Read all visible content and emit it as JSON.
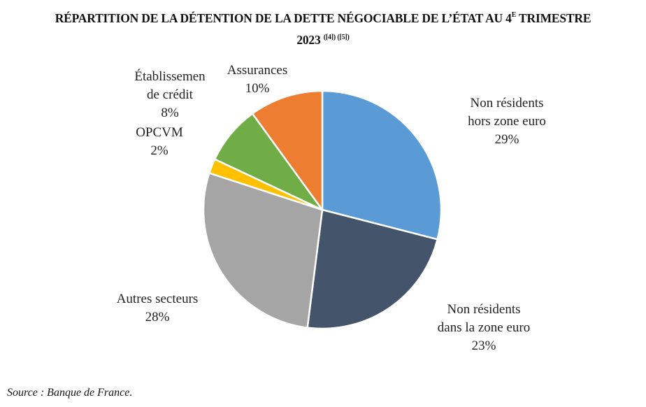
{
  "chart_data": {
    "type": "pie",
    "title": "RÉPARTITION DE LA DÉTENTION DE LA DETTE NÉGOCIABLE DE L’ÉTAT AU 4",
    "title_superscript": "E",
    "title_line1_end": " TRIMESTRE",
    "title_line2": "2023 ",
    "title_refs": "([4]) ([5])",
    "start_angle_deg": 0,
    "direction": "clockwise",
    "slices": [
      {
        "name": "Non résidents hors zone euro",
        "label_lines": [
          "Non résidents",
          "hors zone euro"
        ],
        "value": 29,
        "value_label": "29%",
        "color": "#5B9BD5"
      },
      {
        "name": "Non résidents dans la zone euro",
        "label_lines": [
          "Non résidents",
          "dans la zone euro"
        ],
        "value": 23,
        "value_label": "23%",
        "color": "#44546A"
      },
      {
        "name": "Autres secteurs",
        "label_lines": [
          "Autres secteurs"
        ],
        "value": 28,
        "value_label": "28%",
        "color": "#A5A5A5"
      },
      {
        "name": "OPCVM",
        "label_lines": [
          "OPCVM"
        ],
        "value": 2,
        "value_label": "2%",
        "color": "#FFC000"
      },
      {
        "name": "Établissemen de crédit",
        "label_lines": [
          "Établissemen",
          "de crédit"
        ],
        "value": 8,
        "value_label": "8%",
        "color": "#70AD47"
      },
      {
        "name": "Assurances",
        "label_lines": [
          "Assurances"
        ],
        "value": 10,
        "value_label": "10%",
        "color": "#ED7D31"
      }
    ]
  },
  "footer": {
    "source": "Source : Banque de France."
  }
}
